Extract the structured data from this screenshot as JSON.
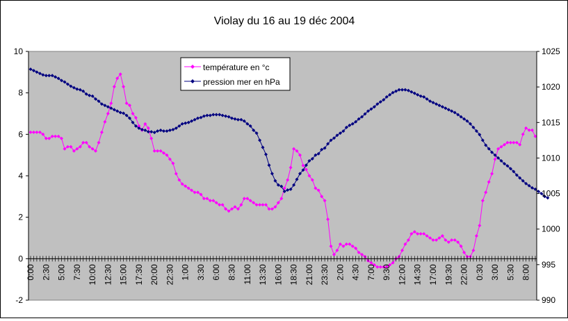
{
  "chart_data": {
    "type": "line",
    "title": "Violay du 16 au 19 déc 2004",
    "xlabel": "",
    "ylabel": "",
    "x_tick_labels": [
      "0:00",
      "2:30",
      "5:00",
      "7:30",
      "10:00",
      "12:30",
      "15:00",
      "17:30",
      "20:00",
      "22:30",
      "1:00",
      "3:30",
      "6:00",
      "8:30",
      "11:00",
      "13:30",
      "16:00",
      "18:30",
      "21:00",
      "23:30",
      "2:00",
      "4:30",
      "7:00",
      "9:30",
      "12:00",
      "14:30",
      "17:00",
      "19:30",
      "22:00",
      "0:30",
      "3:00",
      "5:30",
      "8:00"
    ],
    "x_tick_step_hours": 2.5,
    "x_start": "0:00",
    "x_end": "8:00",
    "ylim": [
      -2,
      10
    ],
    "y_ticks": [
      -2,
      0,
      2,
      4,
      6,
      8,
      10
    ],
    "y2lim": [
      990,
      1025
    ],
    "y2_ticks": [
      990,
      995,
      1000,
      1005,
      1010,
      1015,
      1020,
      1025
    ],
    "plot_background": "#c0c0c0",
    "grid": false,
    "legend_position": "top-center",
    "series": [
      {
        "name": "température en °c",
        "axis": "left",
        "color": "#ff00ff",
        "marker": "diamond",
        "sample_interval_hours": 0.5,
        "values": [
          6.1,
          6.1,
          6.1,
          6.1,
          6,
          5.8,
          5.8,
          5.9,
          5.9,
          5.9,
          5.8,
          5.3,
          5.4,
          5.4,
          5.2,
          5.3,
          5.4,
          5.6,
          5.6,
          5.4,
          5.3,
          5.2,
          5.6,
          6.1,
          6.6,
          7,
          7.5,
          8.3,
          8.7,
          8.9,
          8.3,
          7.5,
          7.4,
          7,
          6.8,
          6.4,
          6.2,
          6.5,
          6.3,
          5.8,
          5.2,
          5.2,
          5.2,
          5.1,
          5,
          4.8,
          4.6,
          4.1,
          3.8,
          3.6,
          3.5,
          3.4,
          3.3,
          3.2,
          3.2,
          3.1,
          2.9,
          2.9,
          2.8,
          2.8,
          2.7,
          2.6,
          2.6,
          2.4,
          2.3,
          2.4,
          2.5,
          2.4,
          2.6,
          2.9,
          2.9,
          2.8,
          2.7,
          2.6,
          2.6,
          2.6,
          2.6,
          2.4,
          2.4,
          2.5,
          2.7,
          2.9,
          3.4,
          3.8,
          4.4,
          5.3,
          5.2,
          5,
          4.5,
          4.3,
          4,
          3.8,
          3.4,
          3.3,
          3,
          2.8,
          1.9,
          0.6,
          0.2,
          0.4,
          0.7,
          0.6,
          0.7,
          0.7,
          0.6,
          0.5,
          0.3,
          0.2,
          0.1,
          -0.1,
          -0.2,
          -0.3,
          -0.4,
          -0.4,
          -0.4,
          -0.4,
          -0.3,
          -0.2,
          0,
          0.1,
          0.4,
          0.7,
          0.9,
          1.2,
          1.3,
          1.2,
          1.2,
          1.2,
          1.1,
          1,
          0.9,
          0.9,
          1,
          1.1,
          0.9,
          0.8,
          0.9,
          0.9,
          0.8,
          0.6,
          0.3,
          0.1,
          0.1,
          0.4,
          1.1,
          1.6,
          2.8,
          3.2,
          3.7,
          4.1,
          4.8,
          5.3,
          5.4,
          5.5,
          5.6,
          5.6,
          5.6,
          5.6,
          5.5,
          6,
          6.3,
          6.2,
          6.2,
          5.9
        ]
      },
      {
        "name": "pression mer en hPa",
        "axis": "right",
        "color": "#000080",
        "marker": "diamond",
        "sample_interval_hours": 0.5,
        "values": [
          1022.5,
          1022.3,
          1022.1,
          1021.9,
          1021.7,
          1021.6,
          1021.6,
          1021.6,
          1021.4,
          1021.2,
          1020.9,
          1020.7,
          1020.4,
          1020.1,
          1019.9,
          1019.7,
          1019.6,
          1019.4,
          1019,
          1018.8,
          1018.7,
          1018.3,
          1018,
          1017.6,
          1017.4,
          1017.2,
          1017,
          1016.8,
          1016.6,
          1016.4,
          1016.3,
          1016,
          1015.6,
          1015,
          1014.5,
          1014.2,
          1014,
          1013.9,
          1013.7,
          1013.7,
          1013.6,
          1013.8,
          1013.9,
          1013.8,
          1013.8,
          1013.9,
          1014,
          1014.2,
          1014.5,
          1014.8,
          1014.9,
          1015,
          1015.2,
          1015.4,
          1015.6,
          1015.7,
          1015.9,
          1016,
          1016,
          1016.1,
          1016.1,
          1016.1,
          1016,
          1015.9,
          1015.8,
          1015.6,
          1015.5,
          1015.4,
          1015.4,
          1015.2,
          1014.8,
          1014.5,
          1013.9,
          1013.5,
          1012.5,
          1011.5,
          1010.5,
          1009,
          1007.8,
          1006.8,
          1006.2,
          1006,
          1005.3,
          1005.5,
          1005.6,
          1006.2,
          1007,
          1007.8,
          1008.3,
          1009,
          1009.6,
          1009.9,
          1010.4,
          1010.6,
          1011.2,
          1011.4,
          1012,
          1012.5,
          1012.8,
          1013.2,
          1013.5,
          1013.8,
          1014.3,
          1014.6,
          1014.8,
          1015.1,
          1015.5,
          1015.8,
          1016.2,
          1016.6,
          1016.9,
          1017.2,
          1017.6,
          1017.9,
          1018.2,
          1018.6,
          1018.9,
          1019.2,
          1019.4,
          1019.6,
          1019.6,
          1019.6,
          1019.5,
          1019.3,
          1019.1,
          1018.9,
          1018.7,
          1018.6,
          1018.3,
          1018,
          1017.8,
          1017.6,
          1017.4,
          1017.2,
          1017,
          1016.8,
          1016.6,
          1016.4,
          1016.1,
          1015.8,
          1015.5,
          1015.2,
          1014.8,
          1014.3,
          1013.8,
          1013.3,
          1012.5,
          1011.8,
          1011.3,
          1010.8,
          1010.4,
          1010,
          1009.6,
          1009.2,
          1008.9,
          1008.5,
          1008.1,
          1007.6,
          1007.2,
          1006.8,
          1006.4,
          1006.1,
          1005.8,
          1005.6,
          1005.3,
          1005,
          1004.6,
          1004.4
        ]
      }
    ]
  }
}
